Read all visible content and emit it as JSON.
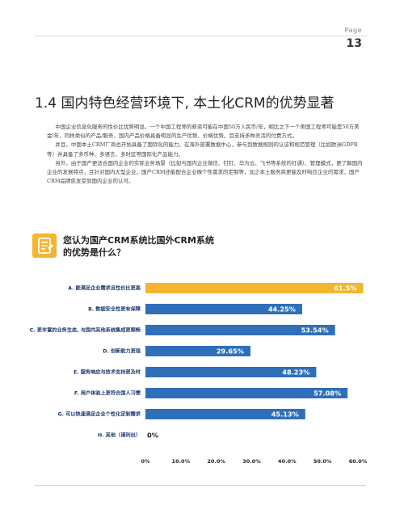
{
  "header": {
    "page_label": "Page",
    "page_number": "13"
  },
  "section": {
    "title": "1.4 国内特色经营环境下, 本土化CRM的优势显著",
    "paragraphs": [
      "中国企业信息化服务的性价比优势明显。一个中国工程师的薪资可能在中国50万人民币/年，相比之下一个美国工程师可能是50万美金/年，同样类似的产品/服务，国内产品价格具备明显的生产优势、价格优势，且支持多种灵活的付费方式。",
      "并且，中国本土CRM厂商也开始具备了国际化的能力，在海外部署数据中心，参与到数据规则的认证和规范管理（比如欧洲GDPR等）并具备了多币种、多语言、多时区等国际化产品能力。",
      "另外，由于国产更适合国内企业的实际业务场景（比如与国内企业微信、钉钉、华为云、飞书等系统的打通）、管理模式，更了解国内企业的发展特点，且针对国内大型企业，国产CRM还能配合企业做个性需求的定制等，加之本土服务商更能及时响应企业的需求，国产CRM品牌愈发受到国内企业的认可。"
    ]
  },
  "survey": {
    "icon": "checklist-icon",
    "question_line1": "您认为国产CRM系统比国外CRM系统",
    "question_line2": "的优势是什么？"
  },
  "colors": {
    "highlight": "#f5b52e",
    "primary": "#2f6fb9",
    "label": "#1d3a70"
  },
  "chart_data": {
    "type": "bar",
    "orientation": "horizontal",
    "categories": [
      "A. 能满足企业需求且性价比更高",
      "B. 数据安全性更有保障",
      "C. 更丰富的业务生态, 与国内其他系统集成更顺畅",
      "D. 创新能力更强",
      "E. 服务响应与技术支持更及时",
      "F. 用户体验上更符合国人习惯",
      "G. 可以快速满足企业个性化定制需求",
      "H. 其他（请列出）"
    ],
    "values": [
      61.5,
      44.25,
      53.54,
      29.65,
      48.23,
      57.08,
      45.13,
      0
    ],
    "value_labels": [
      "61.5%",
      "44.25%",
      "53.54%",
      "29.65%",
      "48.23%",
      "57.08%",
      "45.13%",
      "0%"
    ],
    "highlight_index": 0,
    "xlim": [
      0,
      60
    ],
    "ticks": [
      "0%",
      "10.0%",
      "20.0%",
      "30.0%",
      "40.0%",
      "50.0%",
      "60.0%"
    ]
  }
}
